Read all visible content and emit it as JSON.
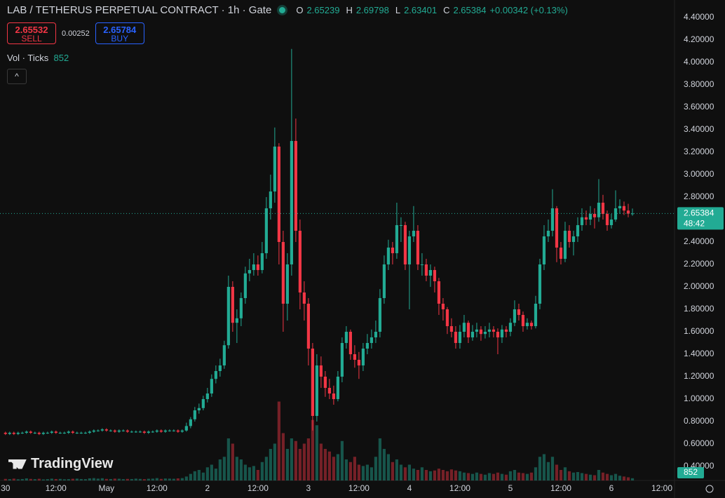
{
  "chart_data": {
    "type": "candlestick",
    "title": "LAB / TETHERUS PERPETUAL CONTRACT · 1h · Gate",
    "ohlc_labels": [
      "O",
      "H",
      "L",
      "C"
    ],
    "change": "+0.00342 (+0.13%)",
    "sell": {
      "price": 2.65532,
      "label": "SELL"
    },
    "spread": 0.00252,
    "buy": {
      "price": 2.65784,
      "label": "BUY"
    },
    "volume_label": "Vol · Ticks",
    "countdown": "48:42",
    "logo": "TradingView",
    "up_color": "#22ab94",
    "down_color": "#f23645",
    "grid": false,
    "ylim": [
      0.275,
      4.556
    ],
    "yticks": [
      {
        "value": 0.4,
        "label": "0.40000"
      },
      {
        "value": 0.6,
        "label": "0.60000"
      },
      {
        "value": 0.8,
        "label": "0.80000"
      },
      {
        "value": 1.0,
        "label": "1.00000"
      },
      {
        "value": 1.2,
        "label": "1.20000"
      },
      {
        "value": 1.4,
        "label": "1.40000"
      },
      {
        "value": 1.6,
        "label": "1.60000"
      },
      {
        "value": 1.8,
        "label": "1.80000"
      },
      {
        "value": 2.0,
        "label": "2.00000"
      },
      {
        "value": 2.2,
        "label": "2.20000"
      },
      {
        "value": 2.4,
        "label": "2.40000"
      },
      {
        "value": 2.6,
        "label": "2.60000"
      },
      {
        "value": 2.8,
        "label": "2.80000"
      },
      {
        "value": 3.0,
        "label": "3.00000"
      },
      {
        "value": 3.2,
        "label": "3.20000"
      },
      {
        "value": 3.4,
        "label": "3.40000"
      },
      {
        "value": 3.6,
        "label": "3.60000"
      },
      {
        "value": 3.8,
        "label": "3.80000"
      },
      {
        "value": 4.0,
        "label": "4.00000"
      },
      {
        "value": 4.2,
        "label": "4.20000"
      },
      {
        "value": 4.4,
        "label": "4.40000"
      }
    ],
    "xlim": [
      -1.3,
      159
    ],
    "xticks": [
      {
        "value": 0,
        "label": "30"
      },
      {
        "value": 12,
        "label": "12:00"
      },
      {
        "value": 24,
        "label": "May"
      },
      {
        "value": 36,
        "label": "12:00"
      },
      {
        "value": 48,
        "label": "2"
      },
      {
        "value": 60,
        "label": "12:00"
      },
      {
        "value": 72,
        "label": "3"
      },
      {
        "value": 84,
        "label": "12:00"
      },
      {
        "value": 96,
        "label": "4"
      },
      {
        "value": 108,
        "label": "12:00"
      },
      {
        "value": 120,
        "label": "5"
      },
      {
        "value": 132,
        "label": "12:00"
      },
      {
        "value": 144,
        "label": "6"
      },
      {
        "value": 156,
        "label": "12:00"
      }
    ],
    "vlim": [
      0,
      32000
    ],
    "ohlc": [
      [
        0.7,
        0.71,
        0.68,
        0.69
      ],
      [
        0.69,
        0.71,
        0.68,
        0.7
      ],
      [
        0.7,
        0.71,
        0.68,
        0.69
      ],
      [
        0.69,
        0.71,
        0.68,
        0.7
      ],
      [
        0.7,
        0.71,
        0.69,
        0.7
      ],
      [
        0.7,
        0.72,
        0.69,
        0.71
      ],
      [
        0.71,
        0.72,
        0.69,
        0.7
      ],
      [
        0.7,
        0.71,
        0.69,
        0.7
      ],
      [
        0.7,
        0.71,
        0.68,
        0.69
      ],
      [
        0.69,
        0.71,
        0.68,
        0.7
      ],
      [
        0.7,
        0.71,
        0.69,
        0.7
      ],
      [
        0.7,
        0.72,
        0.69,
        0.71
      ],
      [
        0.71,
        0.72,
        0.69,
        0.7
      ],
      [
        0.7,
        0.71,
        0.69,
        0.7
      ],
      [
        0.7,
        0.71,
        0.69,
        0.7
      ],
      [
        0.7,
        0.72,
        0.69,
        0.71
      ],
      [
        0.71,
        0.72,
        0.69,
        0.7
      ],
      [
        0.7,
        0.71,
        0.69,
        0.7
      ],
      [
        0.7,
        0.71,
        0.69,
        0.7
      ],
      [
        0.7,
        0.71,
        0.69,
        0.7
      ],
      [
        0.7,
        0.72,
        0.69,
        0.71
      ],
      [
        0.71,
        0.73,
        0.7,
        0.72
      ],
      [
        0.72,
        0.73,
        0.71,
        0.72
      ],
      [
        0.72,
        0.74,
        0.71,
        0.73
      ],
      [
        0.73,
        0.74,
        0.71,
        0.72
      ],
      [
        0.72,
        0.73,
        0.71,
        0.72
      ],
      [
        0.72,
        0.73,
        0.7,
        0.71
      ],
      [
        0.71,
        0.73,
        0.7,
        0.72
      ],
      [
        0.72,
        0.73,
        0.71,
        0.72
      ],
      [
        0.72,
        0.73,
        0.7,
        0.71
      ],
      [
        0.71,
        0.72,
        0.7,
        0.71
      ],
      [
        0.71,
        0.72,
        0.7,
        0.71
      ],
      [
        0.71,
        0.72,
        0.7,
        0.71
      ],
      [
        0.71,
        0.72,
        0.69,
        0.7
      ],
      [
        0.7,
        0.72,
        0.69,
        0.71
      ],
      [
        0.71,
        0.72,
        0.7,
        0.71
      ],
      [
        0.71,
        0.73,
        0.7,
        0.72
      ],
      [
        0.72,
        0.73,
        0.7,
        0.71
      ],
      [
        0.71,
        0.73,
        0.7,
        0.72
      ],
      [
        0.72,
        0.73,
        0.71,
        0.72
      ],
      [
        0.72,
        0.73,
        0.71,
        0.72
      ],
      [
        0.72,
        0.73,
        0.7,
        0.71
      ],
      [
        0.71,
        0.73,
        0.7,
        0.72
      ],
      [
        0.72,
        0.79,
        0.71,
        0.76
      ],
      [
        0.76,
        0.84,
        0.74,
        0.82
      ],
      [
        0.82,
        0.93,
        0.8,
        0.9
      ],
      [
        0.9,
        0.96,
        0.87,
        0.92
      ],
      [
        0.92,
        1.03,
        0.9,
        1.0
      ],
      [
        1.0,
        1.1,
        0.97,
        1.05
      ],
      [
        1.05,
        1.22,
        1.02,
        1.18
      ],
      [
        1.18,
        1.3,
        1.14,
        1.25
      ],
      [
        1.25,
        1.36,
        1.2,
        1.3
      ],
      [
        1.3,
        1.52,
        1.27,
        1.48
      ],
      [
        1.48,
        2.1,
        1.45,
        2.0
      ],
      [
        2.0,
        2.05,
        1.6,
        1.68
      ],
      [
        1.68,
        1.8,
        1.5,
        1.72
      ],
      [
        1.72,
        1.95,
        1.65,
        1.9
      ],
      [
        1.9,
        2.18,
        1.85,
        2.12
      ],
      [
        2.12,
        2.25,
        2.05,
        2.15
      ],
      [
        2.15,
        2.3,
        2.1,
        2.2
      ],
      [
        2.2,
        2.28,
        2.1,
        2.15
      ],
      [
        2.15,
        2.4,
        2.12,
        2.3
      ],
      [
        2.3,
        2.8,
        2.25,
        2.7
      ],
      [
        2.7,
        3.0,
        2.6,
        2.85
      ],
      [
        2.85,
        3.42,
        2.75,
        3.25
      ],
      [
        3.25,
        3.28,
        2.2,
        2.4
      ],
      [
        2.4,
        2.5,
        1.6,
        1.85
      ],
      [
        1.85,
        2.3,
        1.7,
        2.2
      ],
      [
        2.2,
        4.12,
        2.1,
        3.3
      ],
      [
        3.3,
        3.5,
        2.4,
        2.5
      ],
      [
        2.5,
        2.6,
        1.8,
        1.95
      ],
      [
        1.95,
        2.05,
        1.7,
        1.85
      ],
      [
        1.85,
        1.9,
        1.3,
        1.45
      ],
      [
        1.45,
        1.5,
        0.72,
        0.85
      ],
      [
        0.85,
        1.4,
        0.8,
        1.3
      ],
      [
        1.3,
        1.38,
        1.1,
        1.2
      ],
      [
        1.2,
        1.25,
        1.02,
        1.1
      ],
      [
        1.1,
        1.18,
        1.0,
        1.05
      ],
      [
        1.05,
        1.12,
        0.95,
        1.0
      ],
      [
        1.0,
        1.25,
        0.98,
        1.2
      ],
      [
        1.2,
        1.55,
        1.15,
        1.5
      ],
      [
        1.5,
        1.65,
        1.45,
        1.6
      ],
      [
        1.6,
        1.62,
        1.35,
        1.4
      ],
      [
        1.4,
        1.48,
        1.28,
        1.35
      ],
      [
        1.35,
        1.42,
        1.18,
        1.3
      ],
      [
        1.3,
        1.5,
        1.25,
        1.45
      ],
      [
        1.45,
        1.58,
        1.4,
        1.5
      ],
      [
        1.5,
        1.62,
        1.45,
        1.55
      ],
      [
        1.55,
        1.7,
        1.5,
        1.6
      ],
      [
        1.6,
        1.98,
        1.55,
        1.9
      ],
      [
        1.9,
        2.28,
        1.85,
        2.2
      ],
      [
        2.2,
        2.42,
        2.15,
        2.35
      ],
      [
        2.35,
        2.4,
        2.2,
        2.3
      ],
      [
        2.3,
        2.75,
        2.25,
        2.55
      ],
      [
        2.55,
        2.62,
        2.4,
        2.55
      ],
      [
        2.55,
        2.58,
        2.15,
        2.2
      ],
      [
        2.2,
        2.5,
        1.8,
        2.45
      ],
      [
        2.45,
        2.72,
        2.4,
        2.5
      ],
      [
        2.5,
        2.55,
        2.15,
        2.2
      ],
      [
        2.2,
        2.3,
        2.1,
        2.2
      ],
      [
        2.2,
        2.25,
        2.05,
        2.1
      ],
      [
        2.1,
        2.2,
        2.0,
        2.15
      ],
      [
        2.15,
        2.18,
        1.95,
        2.05
      ],
      [
        2.05,
        2.08,
        1.75,
        1.85
      ],
      [
        1.85,
        1.9,
        1.7,
        1.8
      ],
      [
        1.8,
        1.82,
        1.58,
        1.65
      ],
      [
        1.65,
        1.72,
        1.55,
        1.6
      ],
      [
        1.6,
        1.65,
        1.45,
        1.5
      ],
      [
        1.5,
        1.66,
        1.45,
        1.6
      ],
      [
        1.6,
        1.75,
        1.55,
        1.68
      ],
      [
        1.68,
        1.7,
        1.5,
        1.55
      ],
      [
        1.55,
        1.66,
        1.52,
        1.6
      ],
      [
        1.6,
        1.68,
        1.55,
        1.62
      ],
      [
        1.62,
        1.65,
        1.52,
        1.58
      ],
      [
        1.58,
        1.65,
        1.54,
        1.6
      ],
      [
        1.6,
        1.68,
        1.55,
        1.62
      ],
      [
        1.62,
        1.65,
        1.55,
        1.6
      ],
      [
        1.6,
        1.63,
        1.4,
        1.55
      ],
      [
        1.55,
        1.66,
        1.5,
        1.62
      ],
      [
        1.62,
        1.65,
        1.55,
        1.6
      ],
      [
        1.6,
        1.72,
        1.56,
        1.68
      ],
      [
        1.68,
        1.88,
        1.65,
        1.8
      ],
      [
        1.8,
        1.85,
        1.7,
        1.75
      ],
      [
        1.75,
        1.78,
        1.6,
        1.65
      ],
      [
        1.65,
        1.72,
        1.62,
        1.68
      ],
      [
        1.68,
        1.7,
        1.62,
        1.65
      ],
      [
        1.65,
        1.92,
        1.63,
        1.85
      ],
      [
        1.85,
        2.25,
        1.8,
        2.2
      ],
      [
        2.2,
        2.55,
        2.15,
        2.45
      ],
      [
        2.45,
        2.6,
        2.4,
        2.5
      ],
      [
        2.5,
        2.87,
        2.45,
        2.7
      ],
      [
        2.7,
        2.72,
        2.22,
        2.35
      ],
      [
        2.35,
        2.4,
        2.2,
        2.25
      ],
      [
        2.25,
        2.58,
        2.22,
        2.5
      ],
      [
        2.5,
        2.55,
        2.35,
        2.4
      ],
      [
        2.4,
        2.5,
        2.28,
        2.45
      ],
      [
        2.45,
        2.62,
        2.4,
        2.55
      ],
      [
        2.55,
        2.7,
        2.5,
        2.62
      ],
      [
        2.62,
        2.68,
        2.55,
        2.6
      ],
      [
        2.6,
        2.72,
        2.55,
        2.65
      ],
      [
        2.65,
        2.7,
        2.52,
        2.62
      ],
      [
        2.62,
        2.96,
        2.58,
        2.75
      ],
      [
        2.75,
        2.82,
        2.6,
        2.65
      ],
      [
        2.65,
        2.68,
        2.5,
        2.55
      ],
      [
        2.55,
        2.65,
        2.52,
        2.6
      ],
      [
        2.6,
        2.86,
        2.58,
        2.7
      ],
      [
        2.7,
        2.78,
        2.65,
        2.72
      ],
      [
        2.72,
        2.76,
        2.64,
        2.68
      ],
      [
        2.68,
        2.74,
        2.62,
        2.65239
      ],
      [
        2.65239,
        2.69798,
        2.63401,
        2.65384
      ]
    ],
    "volume": [
      600,
      500,
      700,
      450,
      550,
      800,
      600,
      500,
      650,
      400,
      500,
      700,
      550,
      600,
      450,
      500,
      650,
      700,
      550,
      500,
      800,
      900,
      700,
      850,
      600,
      550,
      700,
      650,
      500,
      600,
      550,
      700,
      600,
      500,
      650,
      700,
      900,
      600,
      750,
      700,
      650,
      800,
      900,
      1500,
      2500,
      3500,
      4000,
      3000,
      5000,
      6000,
      4500,
      8000,
      9000,
      16000,
      14000,
      9000,
      8000,
      6000,
      5000,
      5500,
      4000,
      7000,
      9000,
      12000,
      14000,
      30000,
      18000,
      12000,
      16000,
      15000,
      12000,
      14000,
      16000,
      23000,
      21000,
      14000,
      12000,
      11000,
      9000,
      10000,
      15000,
      8000,
      7000,
      9000,
      6000,
      5500,
      6000,
      5000,
      9000,
      16000,
      12000,
      10000,
      7000,
      8000,
      6000,
      5000,
      6000,
      4500,
      4000,
      5000,
      4000,
      3500,
      3800,
      4500,
      4000,
      3500,
      4200,
      3800,
      3500,
      3000,
      2800,
      2500,
      3000,
      2500,
      2200,
      2800,
      2500,
      3000,
      2500,
      2200,
      3500,
      4000,
      3000,
      2800,
      2500,
      3000,
      5000,
      9000,
      10000,
      7000,
      9000,
      6000,
      4000,
      5000,
      3500,
      3000,
      3200,
      2800,
      2500,
      2200,
      2000,
      4000,
      3000,
      2500,
      2000,
      2500,
      1800,
      1500,
      1200,
      852
    ]
  }
}
